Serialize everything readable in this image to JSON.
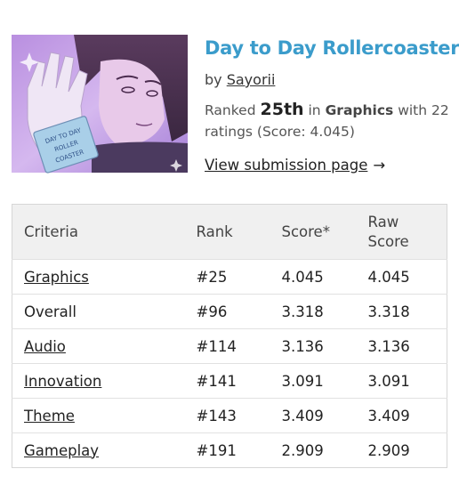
{
  "game": {
    "title": "Day to Day Rollercoaster",
    "by_prefix": "by",
    "author": "Sayorii",
    "ranked_prefix": "Ranked",
    "rank": "25th",
    "in_word": "in",
    "category": "Graphics",
    "ratings_text_1": "with 22",
    "ratings_text_2": "ratings (Score: 4.045)",
    "view_link": "View submission page",
    "view_arrow": "→",
    "cover_label": [
      "DAY TO DAY",
      "ROLLER",
      "COASTER"
    ]
  },
  "table": {
    "headers": {
      "criteria": "Criteria",
      "rank": "Rank",
      "score": "Score*",
      "raw_line1": "Raw",
      "raw_line2": "Score"
    },
    "rows": [
      {
        "criteria": "Graphics",
        "rank": "#25",
        "score": "4.045",
        "raw": "4.045",
        "link": true
      },
      {
        "criteria": "Overall",
        "rank": "#96",
        "score": "3.318",
        "raw": "3.318",
        "link": false
      },
      {
        "criteria": "Audio",
        "rank": "#114",
        "score": "3.136",
        "raw": "3.136",
        "link": true
      },
      {
        "criteria": "Innovation",
        "rank": "#141",
        "score": "3.091",
        "raw": "3.091",
        "link": true
      },
      {
        "criteria": "Theme",
        "rank": "#143",
        "score": "3.409",
        "raw": "3.409",
        "link": true
      },
      {
        "criteria": "Gameplay",
        "rank": "#191",
        "score": "2.909",
        "raw": "2.909",
        "link": true
      }
    ]
  },
  "colors": {
    "title": "#3b9ccb",
    "header_bg": "#f0f0f0",
    "cover_bg": "#c9a9e6"
  },
  "icons": {
    "arrow": "right-arrow-icon"
  }
}
